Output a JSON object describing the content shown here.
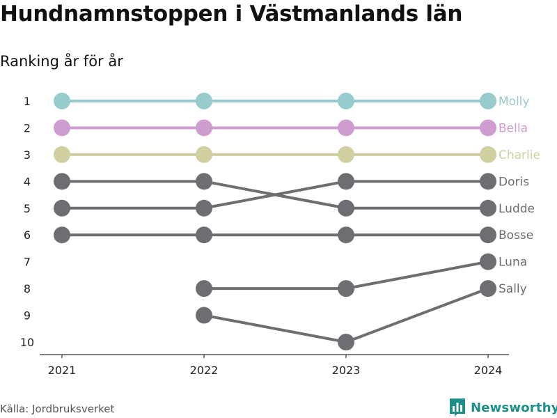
{
  "title": "Hundnamnstoppen i Västmanlands län",
  "subtitle": "Ranking år för år",
  "source": "Källa: Jordbruksverket",
  "brand": {
    "name": "Newsworthy",
    "icon": "bar-chart-logo-icon",
    "color": "#1f8f8c"
  },
  "chart_data": {
    "type": "line",
    "x": [
      "2021",
      "2022",
      "2023",
      "2024"
    ],
    "yticks": [
      1,
      2,
      3,
      4,
      5,
      6,
      7,
      8,
      9,
      10
    ],
    "ylim": [
      1,
      10
    ],
    "y_inverted": true,
    "grid": false,
    "series": [
      {
        "name": "Molly",
        "color": "#98cbcd",
        "values": [
          1,
          1,
          1,
          1
        ]
      },
      {
        "name": "Bella",
        "color": "#cf9ccf",
        "values": [
          2,
          2,
          2,
          2
        ]
      },
      {
        "name": "Charlie",
        "color": "#cfcfa0",
        "values": [
          3,
          3,
          3,
          3
        ]
      },
      {
        "name": "Doris",
        "color": "#6e6d72",
        "values": [
          5,
          5,
          4,
          4
        ]
      },
      {
        "name": "Ludde",
        "color": "#6e6d72",
        "values": [
          4,
          4,
          5,
          5
        ]
      },
      {
        "name": "Bosse",
        "color": "#6e6d72",
        "values": [
          6,
          6,
          6,
          6
        ]
      },
      {
        "name": "Luna",
        "color": "#6e6d72",
        "values": [
          null,
          8,
          8,
          7
        ]
      },
      {
        "name": "Sally",
        "color": "#6e6d72",
        "values": [
          null,
          9,
          10,
          8
        ]
      }
    ]
  }
}
